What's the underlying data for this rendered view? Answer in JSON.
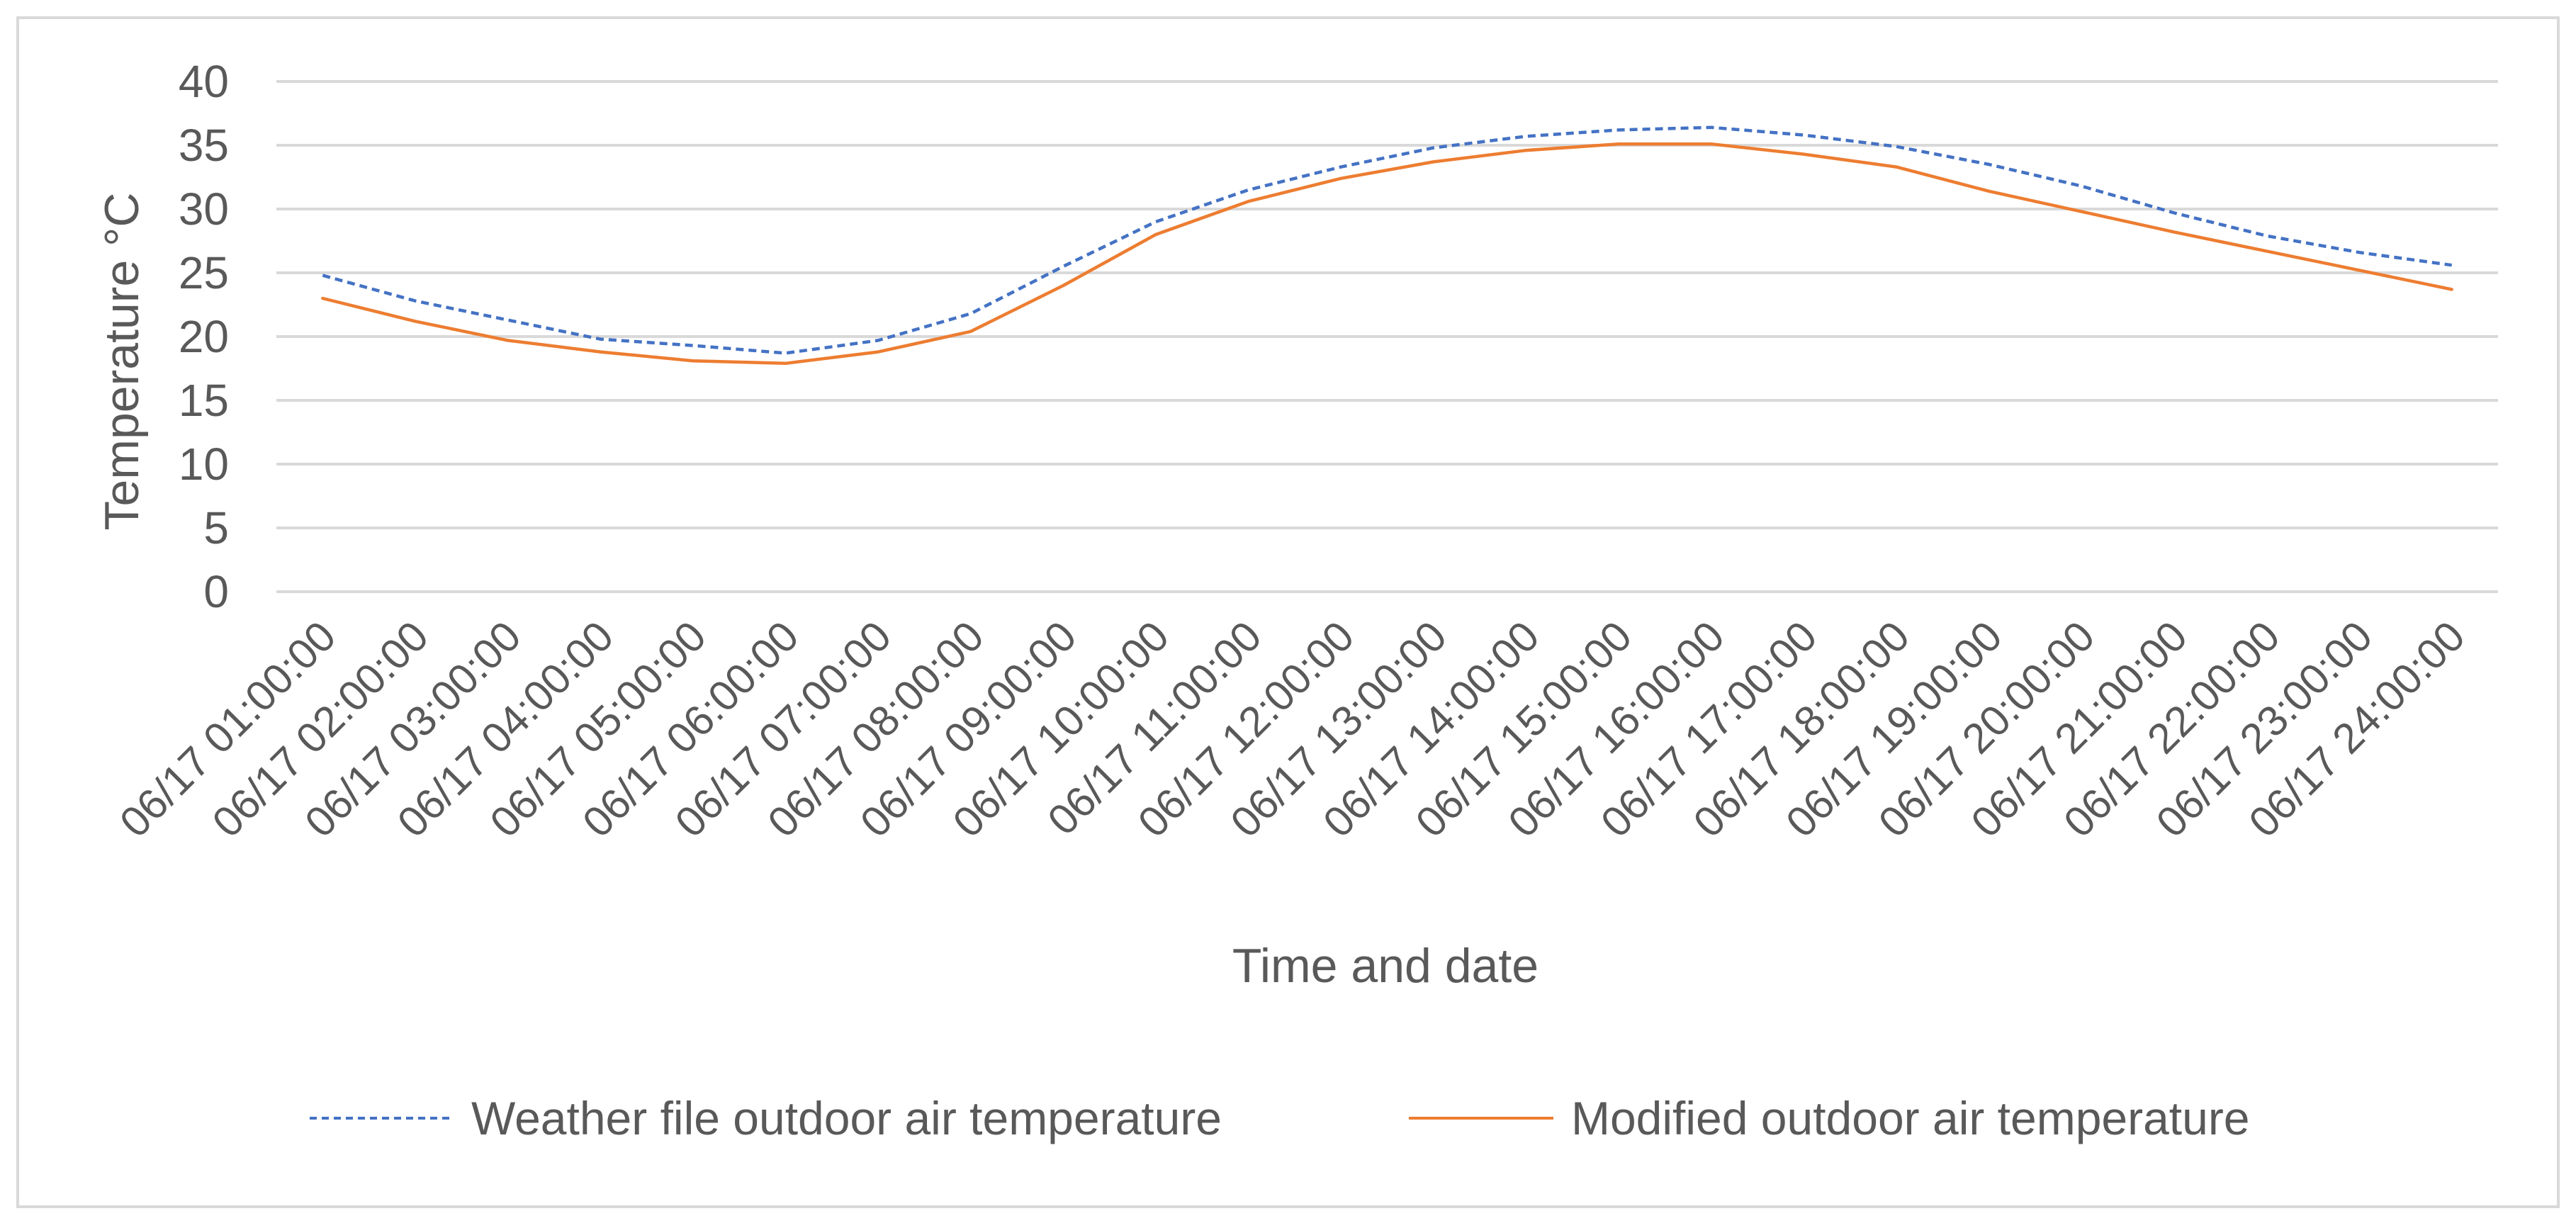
{
  "chart_data": {
    "type": "line",
    "title": "",
    "xlabel": "Time and date",
    "ylabel": "Temperature °C",
    "ylim": [
      0,
      40
    ],
    "yticks": [
      0,
      5,
      10,
      15,
      20,
      25,
      30,
      35,
      40
    ],
    "grid": true,
    "legend_position": "bottom",
    "categories": [
      "06/17  01:00:00",
      "06/17  02:00:00",
      "06/17  03:00:00",
      "06/17  04:00:00",
      "06/17  05:00:00",
      "06/17  06:00:00",
      "06/17  07:00:00",
      "06/17  08:00:00",
      "06/17  09:00:00",
      "06/17  10:00:00",
      "06/17  11:00:00",
      "06/17  12:00:00",
      "06/17  13:00:00",
      "06/17  14:00:00",
      "06/17  15:00:00",
      "06/17  16:00:00",
      "06/17  17:00:00",
      "06/17  18:00:00",
      "06/17  19:00:00",
      "06/17  20:00:00",
      "06/17  21:00:00",
      "06/17  22:00:00",
      "06/17  23:00:00",
      "06/17  24:00:00"
    ],
    "series": [
      {
        "name": "Weather file outdoor air temperature",
        "color": "#4472c4",
        "line_style": "dashed",
        "values": [
          24.8,
          22.8,
          21.3,
          19.8,
          19.3,
          18.7,
          19.7,
          21.8,
          25.5,
          29.0,
          31.5,
          33.3,
          34.8,
          35.7,
          36.2,
          36.4,
          35.8,
          34.9,
          33.5,
          31.8,
          29.7,
          27.9,
          26.6,
          25.6
        ]
      },
      {
        "name": "Modified outdoor air temperature",
        "color": "#ed7d31",
        "line_style": "solid",
        "values": [
          23.0,
          21.2,
          19.7,
          18.8,
          18.1,
          17.9,
          18.8,
          20.4,
          24.0,
          28.0,
          30.6,
          32.4,
          33.7,
          34.6,
          35.1,
          35.1,
          34.3,
          33.3,
          31.4,
          29.8,
          28.2,
          26.7,
          25.2,
          23.7
        ]
      }
    ]
  }
}
